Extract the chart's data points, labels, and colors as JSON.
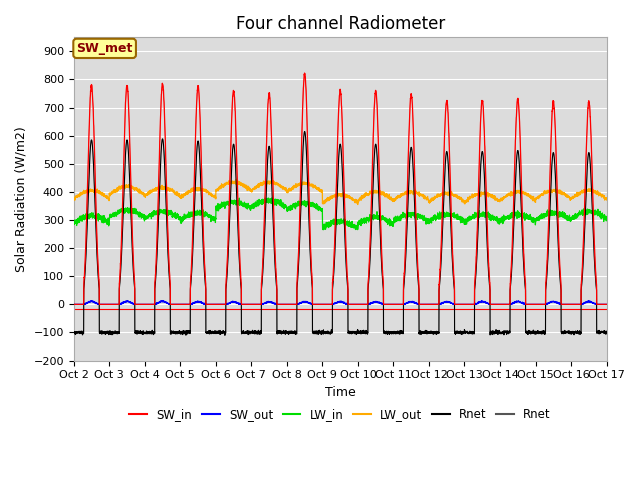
{
  "title": "Four channel Radiometer",
  "xlabel": "Time",
  "ylabel": "Solar Radiation (W/m2)",
  "ylim": [
    -200,
    950
  ],
  "yticks": [
    -200,
    -100,
    0,
    100,
    200,
    300,
    400,
    500,
    600,
    700,
    800,
    900
  ],
  "n_days": 15,
  "xtick_labels": [
    "Oct 2",
    "Oct 3",
    "Oct 4",
    "Oct 5",
    "Oct 6",
    "Oct 7",
    "Oct 8",
    "Oct 9",
    "Oct 10",
    "Oct 11",
    "Oct 12",
    "Oct 13",
    "Oct 14",
    "Oct 15",
    "Oct 16",
    "Oct 17"
  ],
  "plot_bg_color": "#dcdcdc",
  "sw_in_color": "#ff0000",
  "sw_out_color": "#0000ff",
  "lw_in_color": "#00dd00",
  "lw_out_color": "#ffaa00",
  "rnet_color": "#000000",
  "rnet2_color": "#555555",
  "annotation_text": "SW_met",
  "annotation_bg": "#ffff99",
  "annotation_border": "#996600",
  "title_fontsize": 12,
  "label_fontsize": 9,
  "tick_fontsize": 8
}
